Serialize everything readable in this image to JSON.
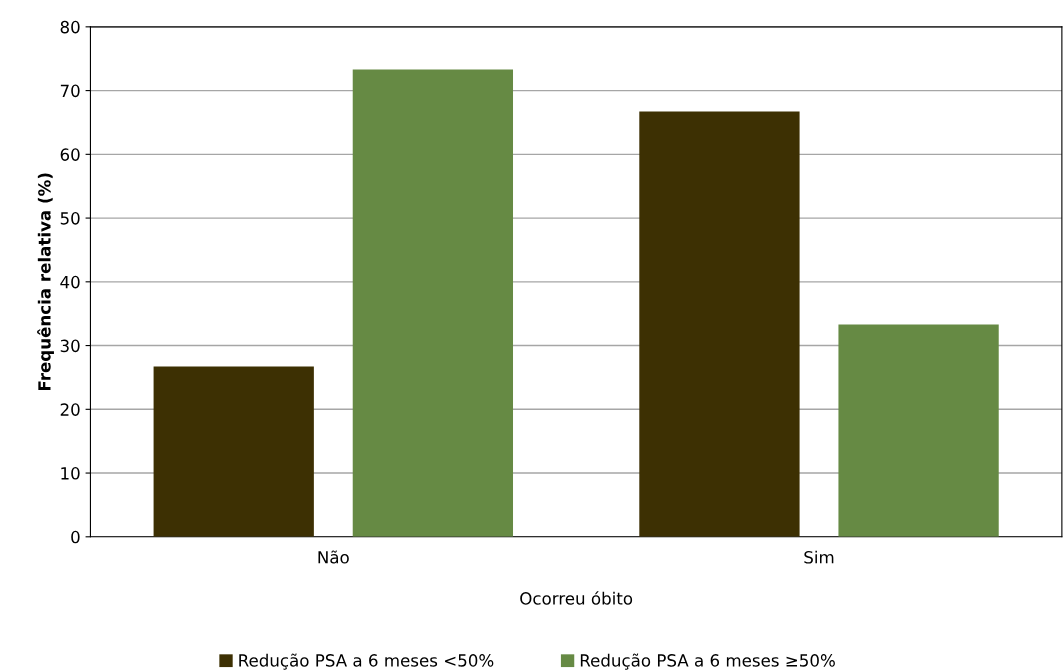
{
  "chart_data": {
    "type": "bar",
    "xlabel": "Ocorreu óbito",
    "ylabel": "Frequência relativa (%)",
    "categories": [
      "Não",
      "Sim"
    ],
    "series": [
      {
        "name": "Redução PSA a 6 meses <50%",
        "color": "#3d3003",
        "values": [
          26.7,
          66.7
        ]
      },
      {
        "name": "Redução PSA a 6 meses ≥50%",
        "color": "#668a44",
        "values": [
          73.3,
          33.3
        ]
      }
    ],
    "ylim": [
      0,
      80
    ],
    "yticks": [
      0,
      10,
      20,
      30,
      40,
      50,
      60,
      70,
      80
    ],
    "grid": "y",
    "legend": "bottom"
  }
}
